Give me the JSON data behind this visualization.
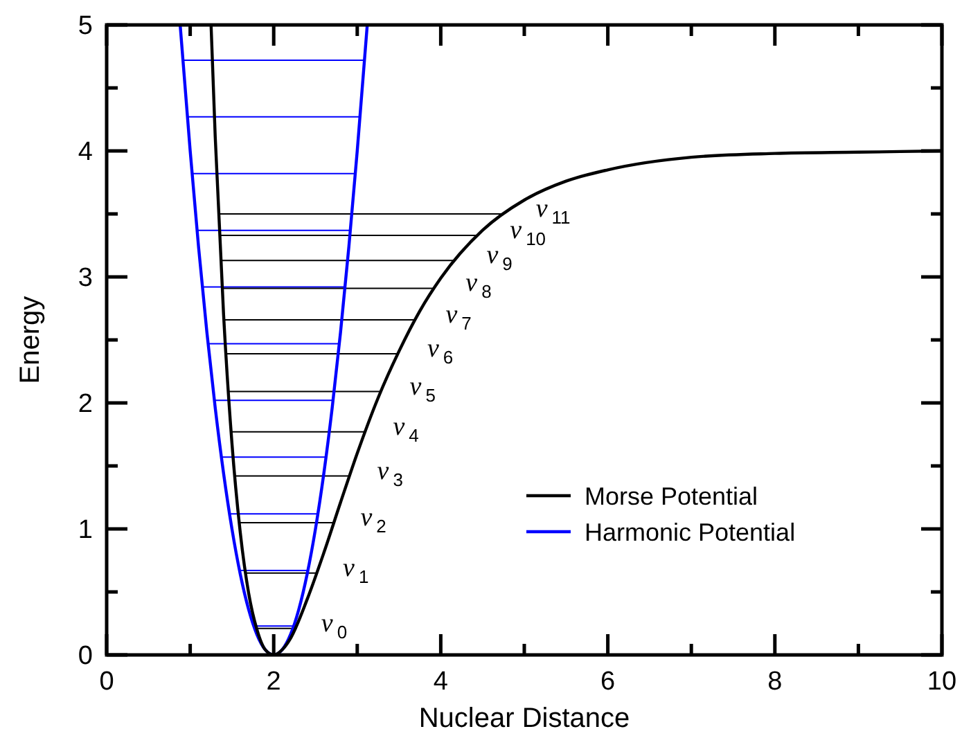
{
  "chart_data": {
    "type": "line",
    "xlabel": "Nuclear Distance",
    "ylabel": "Energy",
    "xlim": [
      0,
      10
    ],
    "ylim": [
      0,
      5
    ],
    "xticks": [
      0,
      {
        "value": 1,
        "label": null
      },
      2,
      {
        "value": 3,
        "label": null
      },
      4,
      {
        "value": 5,
        "label": null
      },
      6,
      {
        "value": 7,
        "label": null
      },
      8,
      {
        "value": 9,
        "label": null
      },
      10
    ],
    "yticks": [
      0,
      {
        "value": 0.5,
        "label": null
      },
      1,
      {
        "value": 1.5,
        "label": null
      },
      2,
      {
        "value": 2.5,
        "label": null
      },
      3,
      {
        "value": 3.5,
        "label": null
      },
      4,
      {
        "value": 4.5,
        "label": null
      },
      5
    ],
    "grid": false,
    "legend": "bottom right",
    "marker": "none",
    "line_style": "solid",
    "series": [
      {
        "color": "#000000",
        "x": [
          1.79,
          2.27
        ],
        "values": [
          0.21,
          0.21
        ]
      },
      {
        "color": "#000000",
        "x": [
          1.66,
          2.52
        ],
        "values": [
          0.65,
          0.65
        ]
      },
      {
        "color": "#000000",
        "x": [
          1.59,
          2.72
        ],
        "values": [
          1.05,
          1.05
        ]
      },
      {
        "color": "#000000",
        "x": [
          1.53,
          2.91
        ],
        "values": [
          1.42,
          1.42
        ]
      },
      {
        "color": "#000000",
        "x": [
          1.49,
          3.09
        ],
        "values": [
          1.77,
          1.77
        ]
      },
      {
        "color": "#000000",
        "x": [
          1.46,
          3.28
        ],
        "values": [
          2.09,
          2.09
        ]
      },
      {
        "color": "#000000",
        "x": [
          1.43,
          3.48
        ],
        "values": [
          2.39,
          2.39
        ]
      },
      {
        "color": "#000000",
        "x": [
          1.4,
          3.69
        ],
        "values": [
          2.66,
          2.66
        ]
      },
      {
        "color": "#000000",
        "x": [
          1.38,
          3.92
        ],
        "values": [
          2.91,
          2.91
        ]
      },
      {
        "color": "#000000",
        "x": [
          1.37,
          4.16
        ],
        "values": [
          3.13,
          3.13
        ]
      },
      {
        "color": "#000000",
        "x": [
          1.35,
          4.43
        ],
        "values": [
          3.33,
          3.33
        ]
      },
      {
        "color": "#000000",
        "x": [
          1.34,
          4.73
        ],
        "values": [
          3.5,
          3.5
        ]
      },
      {
        "color": "#0000ff",
        "x": [
          1.77,
          2.23
        ],
        "values": [
          0.23,
          0.23
        ]
      },
      {
        "color": "#0000ff",
        "x": [
          1.59,
          2.41
        ],
        "values": [
          0.67,
          0.67
        ]
      },
      {
        "color": "#0000ff",
        "x": [
          1.47,
          2.53
        ],
        "values": [
          1.12,
          1.12
        ]
      },
      {
        "color": "#0000ff",
        "x": [
          1.37,
          2.63
        ],
        "values": [
          1.57,
          1.57
        ]
      },
      {
        "color": "#0000ff",
        "x": [
          1.29,
          2.71
        ],
        "values": [
          2.02,
          2.02
        ]
      },
      {
        "color": "#0000ff",
        "x": [
          1.21,
          2.79
        ],
        "values": [
          2.47,
          2.47
        ]
      },
      {
        "color": "#0000ff",
        "x": [
          1.15,
          2.85
        ],
        "values": [
          2.92,
          2.92
        ]
      },
      {
        "color": "#0000ff",
        "x": [
          1.08,
          2.92
        ],
        "values": [
          3.37,
          3.37
        ]
      },
      {
        "color": "#0000ff",
        "x": [
          1.02,
          2.98
        ],
        "values": [
          3.82,
          3.82
        ]
      },
      {
        "color": "#0000ff",
        "x": [
          0.97,
          3.03
        ],
        "values": [
          4.27,
          4.27
        ]
      },
      {
        "color": "#0000ff",
        "x": [
          0.91,
          3.09
        ],
        "values": [
          4.72,
          4.72
        ]
      },
      {
        "name": "Morse Potential",
        "color": "#000000",
        "x": [
          1.25,
          1.3,
          1.4,
          1.5,
          1.6,
          1.7,
          1.8,
          1.9,
          2,
          2.1,
          2.2,
          2.4,
          2.6,
          2.8,
          3,
          3.25,
          3.5,
          3.75,
          4,
          4.5,
          5,
          5.5,
          6,
          7,
          8,
          9,
          10
        ],
        "values": [
          5,
          4.11,
          2.7,
          1.68,
          0.97,
          0.49,
          0.2,
          0.04,
          0,
          0.04,
          0.13,
          0.44,
          0.81,
          1.21,
          1.6,
          2.04,
          2.41,
          2.73,
          2.99,
          3.37,
          3.61,
          3.76,
          3.85,
          3.95,
          3.98,
          3.99,
          4
        ]
      },
      {
        "name": "Harmonic Potential",
        "color": "#0000ff",
        "x": [
          0.88,
          1,
          1.1,
          1.2,
          1.3,
          1.4,
          1.5,
          1.6,
          1.7,
          1.8,
          1.9,
          2,
          2.1,
          2.2,
          2.3,
          2.4,
          2.5,
          2.6,
          2.7,
          2.8,
          2.9,
          3,
          3.12
        ],
        "values": [
          5,
          4,
          3.24,
          2.56,
          1.96,
          1.44,
          1,
          0.64,
          0.36,
          0.16,
          0.04,
          0,
          0.04,
          0.16,
          0.36,
          0.64,
          1,
          1.44,
          1.96,
          2.56,
          3.24,
          4,
          5
        ]
      }
    ],
    "annotations": [
      "ν$_{0}$",
      "ν$_{1}$",
      "ν$_{2}$",
      "ν$_{3}$",
      "ν$_{4}$",
      "ν$_{5}$",
      "ν$_{6}$",
      "ν$_{7}$",
      "ν$_{8}$",
      "ν$_{9}$",
      "ν$_{10}$",
      "ν$_{11}$"
    ]
  }
}
